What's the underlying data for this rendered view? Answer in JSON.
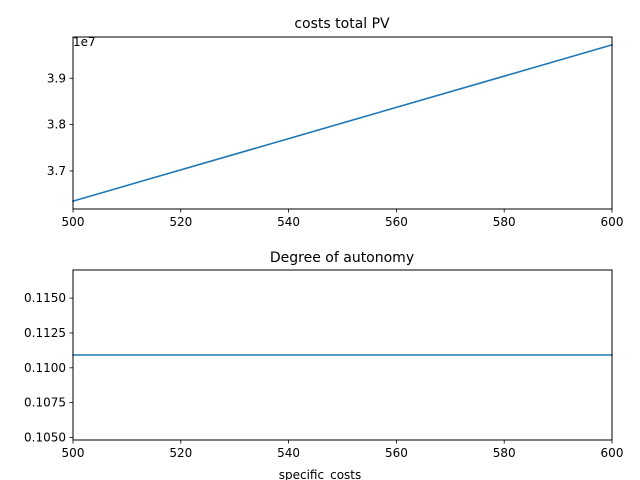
{
  "chart_data": [
    {
      "type": "line",
      "title": "costs total PV",
      "xlabel": "",
      "ylabel": "",
      "offset_text": "1e7",
      "x": [
        500,
        600
      ],
      "series": [
        {
          "values": [
            36350000,
            39720000
          ],
          "color": "#1f77b4"
        }
      ],
      "xlim": [
        500,
        600
      ],
      "ylim": [
        36180000,
        39890000
      ],
      "xticks": [
        500,
        520,
        540,
        560,
        580,
        600
      ],
      "xtick_labels": [
        "500",
        "520",
        "540",
        "560",
        "580",
        "600"
      ],
      "yticks": [
        37000000,
        38000000,
        39000000
      ],
      "ytick_labels": [
        "3.7",
        "3.8",
        "3.9"
      ],
      "grid": false
    },
    {
      "type": "line",
      "title": "Degree of autonomy",
      "xlabel": "specific_costs",
      "ylabel": "",
      "x": [
        500,
        600
      ],
      "series": [
        {
          "values": [
            0.11092,
            0.11092
          ],
          "color": "#1f77b4"
        }
      ],
      "xlim": [
        500,
        600
      ],
      "ylim": [
        0.10482,
        0.11702
      ],
      "xticks": [
        500,
        520,
        540,
        560,
        580,
        600
      ],
      "xtick_labels": [
        "500",
        "520",
        "540",
        "560",
        "580",
        "600"
      ],
      "yticks": [
        0.105,
        0.1075,
        0.11,
        0.1125,
        0.115
      ],
      "ytick_labels": [
        "0.1050",
        "0.1075",
        "0.1100",
        "0.1125",
        "0.1150"
      ],
      "grid": false
    }
  ]
}
